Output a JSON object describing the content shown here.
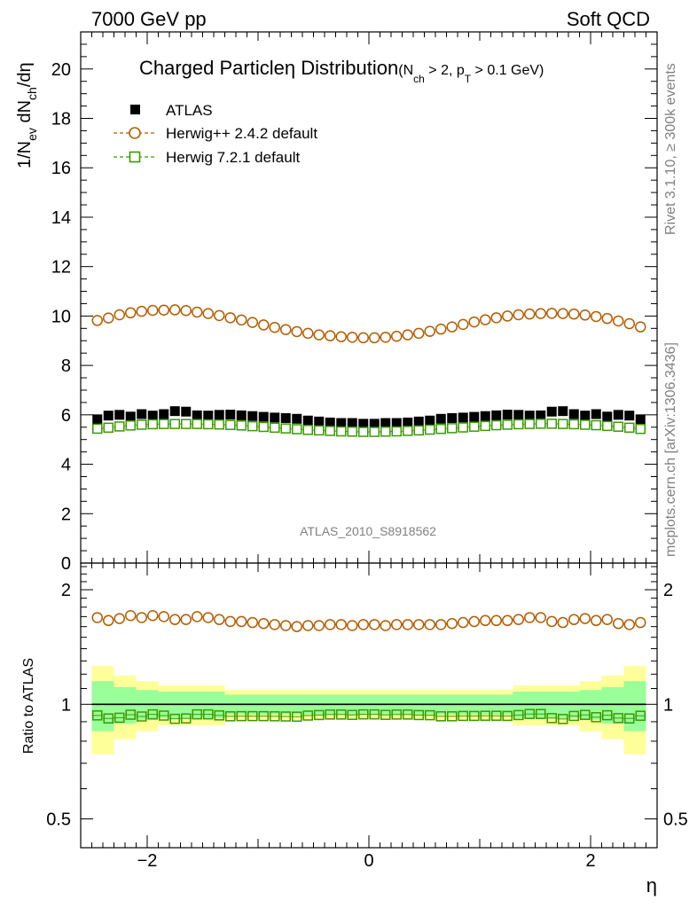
{
  "header": {
    "left": "7000 GeV pp",
    "right": "Soft QCD"
  },
  "side": {
    "rivet": "Rivet 3.1.10, ≥ 300k events",
    "mcplots": "mcplots.cern.ch [arXiv:1306.3436]"
  },
  "watermark": "ATLAS_2010_S8918562",
  "colors": {
    "atlas": "#000000",
    "herwigpp": "#b35c00",
    "herwig7": "#3a9a00",
    "band_inner": "#99ff99",
    "band_outer": "#ffff99"
  },
  "chart_data": [
    {
      "type": "scatter",
      "panel": "main",
      "title": "Charged Particleη Distribution",
      "title_cuts": {
        "open": "(N",
        "nch_sub": "ch",
        "mid": " > 2, p",
        "pt_sub": "T",
        "close": " > 0.1 GeV)"
      },
      "ylabel": {
        "pre": "1/N",
        "ev_sub": "ev",
        "mid": " dN",
        "ch_sub": "ch",
        "post": "/dη"
      },
      "xlabel": "η",
      "xlim": [
        -2.6,
        2.6
      ],
      "ylim": [
        0,
        21.5
      ],
      "yticks": [
        "0",
        "2",
        "4",
        "6",
        "8",
        "10",
        "12",
        "14",
        "16",
        "18",
        "20"
      ],
      "x": [
        -2.45,
        -2.35,
        -2.25,
        -2.15,
        -2.05,
        -1.95,
        -1.85,
        -1.75,
        -1.65,
        -1.55,
        -1.45,
        -1.35,
        -1.25,
        -1.15,
        -1.05,
        -0.95,
        -0.85,
        -0.75,
        -0.65,
        -0.55,
        -0.45,
        -0.35,
        -0.25,
        -0.15,
        -0.05,
        0.05,
        0.15,
        0.25,
        0.35,
        0.45,
        0.55,
        0.65,
        0.75,
        0.85,
        0.95,
        1.05,
        1.15,
        1.25,
        1.35,
        1.45,
        1.55,
        1.65,
        1.75,
        1.85,
        1.95,
        2.05,
        2.15,
        2.25,
        2.35,
        2.45
      ],
      "legend": [
        {
          "label": "ATLAS",
          "marker": "filled-square"
        },
        {
          "label": "Herwig++ 2.4.2 default",
          "marker": "open-circle"
        },
        {
          "label": "Herwig 7.2.1 default",
          "marker": "open-square"
        }
      ],
      "series": [
        {
          "name": "ATLAS",
          "values": [
            5.82,
            5.97,
            6.0,
            5.93,
            6.03,
            5.97,
            6.03,
            6.15,
            6.13,
            5.98,
            5.97,
            6.0,
            6.01,
            5.98,
            5.95,
            5.92,
            5.89,
            5.87,
            5.84,
            5.77,
            5.73,
            5.69,
            5.67,
            5.67,
            5.64,
            5.64,
            5.67,
            5.67,
            5.69,
            5.73,
            5.77,
            5.84,
            5.87,
            5.89,
            5.92,
            5.95,
            5.98,
            6.01,
            6.0,
            5.97,
            5.98,
            6.13,
            6.15,
            6.03,
            5.97,
            6.03,
            5.93,
            6.0,
            5.97,
            5.82
          ]
        },
        {
          "name": "Herwig++ 2.4.2 default",
          "values": [
            9.82,
            9.92,
            10.05,
            10.13,
            10.19,
            10.23,
            10.24,
            10.25,
            10.22,
            10.16,
            10.1,
            10.02,
            9.93,
            9.84,
            9.74,
            9.64,
            9.54,
            9.45,
            9.37,
            9.3,
            9.24,
            9.2,
            9.16,
            9.14,
            9.12,
            9.12,
            9.14,
            9.18,
            9.24,
            9.3,
            9.38,
            9.47,
            9.56,
            9.66,
            9.76,
            9.85,
            9.93,
            10.0,
            10.05,
            10.08,
            10.1,
            10.11,
            10.1,
            10.08,
            10.04,
            9.98,
            9.9,
            9.8,
            9.69,
            9.56
          ]
        },
        {
          "name": "Herwig 7.2.1 default",
          "values": [
            5.44,
            5.48,
            5.53,
            5.57,
            5.6,
            5.62,
            5.63,
            5.63,
            5.63,
            5.63,
            5.62,
            5.61,
            5.59,
            5.57,
            5.54,
            5.51,
            5.48,
            5.45,
            5.42,
            5.39,
            5.37,
            5.35,
            5.33,
            5.32,
            5.31,
            5.31,
            5.32,
            5.33,
            5.35,
            5.37,
            5.4,
            5.43,
            5.46,
            5.49,
            5.52,
            5.55,
            5.58,
            5.6,
            5.62,
            5.63,
            5.64,
            5.64,
            5.63,
            5.62,
            5.6,
            5.58,
            5.55,
            5.52,
            5.48,
            5.43
          ]
        }
      ]
    },
    {
      "type": "scatter",
      "panel": "ratio",
      "ylabel": "Ratio to ATLAS",
      "xlabel": "η",
      "xlim": [
        -2.6,
        2.6
      ],
      "ylim": [
        0.42,
        2.35
      ],
      "scale": "log",
      "yticks": [
        "0.5",
        "1",
        "2"
      ],
      "xticks": [
        "−2",
        "0",
        "2"
      ],
      "x": [
        -2.45,
        -2.35,
        -2.25,
        -2.15,
        -2.05,
        -1.95,
        -1.85,
        -1.75,
        -1.65,
        -1.55,
        -1.45,
        -1.35,
        -1.25,
        -1.15,
        -1.05,
        -0.95,
        -0.85,
        -0.75,
        -0.65,
        -0.55,
        -0.45,
        -0.35,
        -0.25,
        -0.15,
        -0.05,
        0.05,
        0.15,
        0.25,
        0.35,
        0.45,
        0.55,
        0.65,
        0.75,
        0.85,
        0.95,
        1.05,
        1.15,
        1.25,
        1.35,
        1.45,
        1.55,
        1.65,
        1.75,
        1.85,
        1.95,
        2.05,
        2.15,
        2.25,
        2.35,
        2.45
      ],
      "band_edges": [
        -2.5,
        -2.3,
        -2.1,
        -1.9,
        -1.3,
        1.3,
        1.9,
        2.1,
        2.3,
        2.5
      ],
      "band_outer": [
        0.26,
        0.19,
        0.15,
        0.12,
        0.09,
        0.12,
        0.15,
        0.19,
        0.26
      ],
      "band_inner": [
        0.15,
        0.11,
        0.09,
        0.08,
        0.06,
        0.08,
        0.09,
        0.11,
        0.15
      ],
      "series": [
        {
          "name": "Herwig++ 2.4.2 default",
          "values": [
            1.69,
            1.66,
            1.68,
            1.71,
            1.69,
            1.71,
            1.7,
            1.67,
            1.67,
            1.7,
            1.69,
            1.67,
            1.65,
            1.65,
            1.64,
            1.63,
            1.62,
            1.61,
            1.6,
            1.61,
            1.61,
            1.62,
            1.62,
            1.61,
            1.62,
            1.62,
            1.61,
            1.62,
            1.62,
            1.62,
            1.62,
            1.62,
            1.63,
            1.64,
            1.65,
            1.66,
            1.66,
            1.66,
            1.67,
            1.69,
            1.69,
            1.65,
            1.64,
            1.67,
            1.68,
            1.66,
            1.67,
            1.63,
            1.62,
            1.64
          ]
        },
        {
          "name": "Herwig 7.2.1 default",
          "values": [
            0.935,
            0.918,
            0.922,
            0.939,
            0.929,
            0.941,
            0.934,
            0.916,
            0.918,
            0.941,
            0.941,
            0.935,
            0.93,
            0.931,
            0.931,
            0.931,
            0.93,
            0.929,
            0.928,
            0.934,
            0.937,
            0.94,
            0.94,
            0.938,
            0.941,
            0.941,
            0.938,
            0.94,
            0.94,
            0.937,
            0.936,
            0.93,
            0.93,
            0.932,
            0.932,
            0.933,
            0.933,
            0.932,
            0.937,
            0.943,
            0.943,
            0.92,
            0.915,
            0.932,
            0.938,
            0.925,
            0.936,
            0.92,
            0.918,
            0.933
          ]
        }
      ]
    }
  ]
}
